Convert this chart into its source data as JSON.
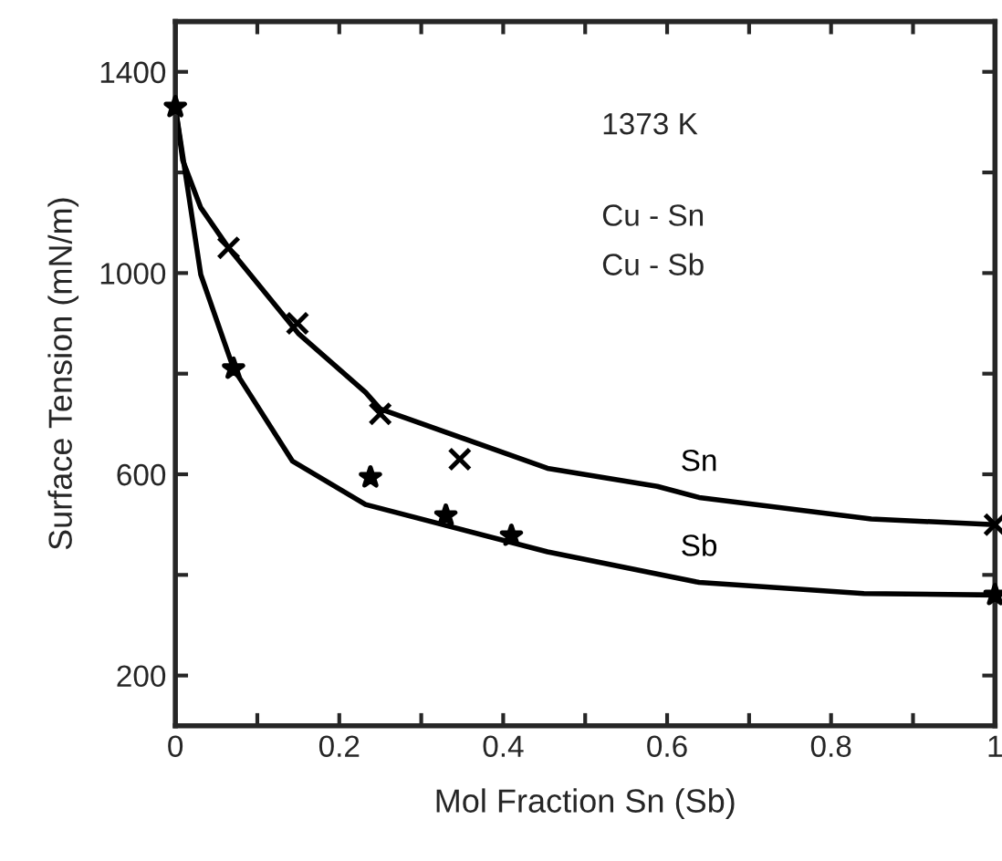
{
  "chart_data": {
    "type": "line",
    "xlabel": "Mol Fraction Sn (Sb)",
    "ylabel": "Surface Tension (mN/m)",
    "xlim": [
      0,
      1
    ],
    "ylim": [
      100,
      1500
    ],
    "xticks": [
      0,
      {
        "value": 0.1,
        "label": null
      },
      0.2,
      {
        "value": 0.3,
        "label": null
      },
      0.4,
      {
        "value": 0.5,
        "label": null
      },
      0.6,
      {
        "value": 0.7,
        "label": null
      },
      0.8,
      {
        "value": 0.9,
        "label": null
      },
      1
    ],
    "yticks": [
      200,
      {
        "value": 400,
        "label": null
      },
      600,
      {
        "value": 800,
        "label": null
      },
      1000,
      {
        "value": 1200,
        "label": null
      },
      1400
    ],
    "grid": false,
    "legend": false,
    "annotations": [
      "1373 K",
      "Cu - Sn",
      "Cu - Sb"
    ],
    "series": [
      {
        "name": "Sn",
        "color": "#000000",
        "marker": "none",
        "line_style": "solid",
        "x": [
          0,
          0.009,
          0.031,
          0.065,
          0.15,
          0.232,
          0.25,
          0.454,
          0.588,
          0.639,
          0.849,
          1
        ],
        "values": [
          1330,
          1224,
          1130,
          1050,
          880,
          763,
          730,
          612,
          576,
          554,
          511,
          500
        ]
      },
      {
        "name": "Sb",
        "color": "#000000",
        "marker": "none",
        "line_style": "solid",
        "x": [
          0,
          0.031,
          0.071,
          0.143,
          0.232,
          0.454,
          0.639,
          0.84,
          1
        ],
        "values": [
          1330,
          997,
          810,
          626,
          540,
          446,
          385,
          363,
          360
        ]
      },
      {
        "type": "scatter",
        "color": "#000000",
        "marker": "cross",
        "x": [
          0.065,
          0.149,
          0.25,
          0.347,
          1
        ],
        "values": [
          1050,
          900,
          720,
          630,
          500
        ]
      },
      {
        "type": "scatter",
        "color": "#000000",
        "marker": "star",
        "x": [
          0,
          0.071,
          0.238,
          0.33,
          0.41,
          1
        ],
        "values": [
          1330,
          810,
          594,
          518,
          478,
          360
        ]
      }
    ]
  }
}
